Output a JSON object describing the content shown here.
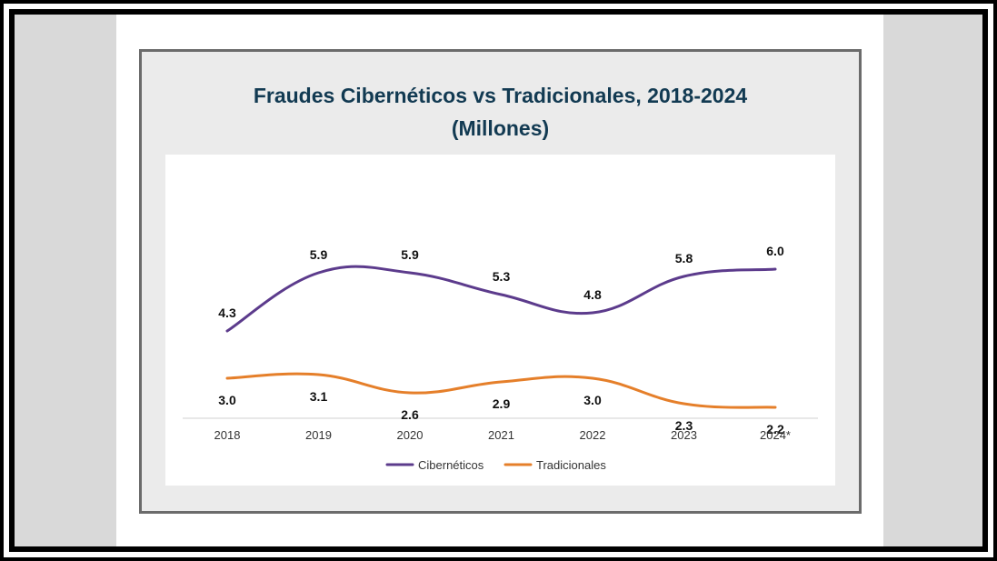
{
  "chart_data": {
    "type": "line",
    "title_line1": "Fraudes Cibernéticos vs Tradicionales, 2018-2024",
    "title_line2": "(Millones)",
    "categories": [
      "2018",
      "2019",
      "2020",
      "2021",
      "2022",
      "2023",
      "2024*"
    ],
    "series": [
      {
        "name": "Cibernéticos",
        "color": "#5c3b8c",
        "values": [
          4.3,
          5.9,
          5.9,
          5.3,
          4.8,
          5.8,
          6.0
        ],
        "labels": [
          "4.3",
          "5.9",
          "5.9",
          "5.3",
          "4.8",
          "5.8",
          "6.0"
        ]
      },
      {
        "name": "Tradicionales",
        "color": "#e57f2a",
        "values": [
          3.0,
          3.1,
          2.6,
          2.9,
          3.0,
          2.3,
          2.2
        ],
        "labels": [
          "3.0",
          "3.1",
          "2.6",
          "2.9",
          "3.0",
          "2.3",
          "2.2"
        ]
      }
    ],
    "xlabel": "",
    "ylabel": "",
    "ylim": [
      0,
      6.5
    ],
    "grid": false,
    "legend": "bottom"
  }
}
